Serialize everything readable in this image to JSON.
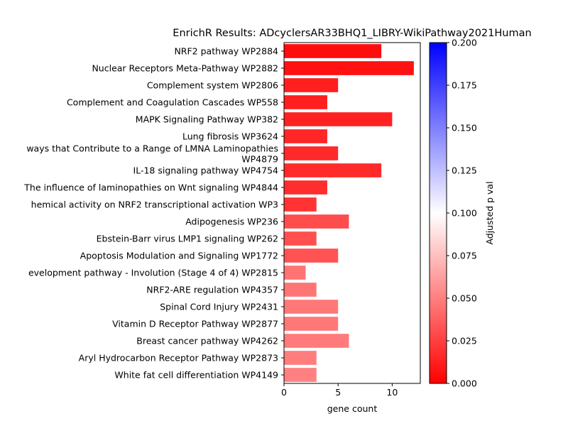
{
  "chart_data": {
    "type": "bar",
    "orientation": "horizontal",
    "title": "EnrichR Results: ADcyclersAR33BHQ1_LIBRY-WikiPathway2021Human",
    "xlabel": "gene count",
    "ylabel": "",
    "xlim": [
      0,
      12.6
    ],
    "xticks": [
      0,
      5,
      10
    ],
    "categories": [
      [
        "NRF2 pathway WP2884"
      ],
      [
        "Nuclear Receptors Meta-Pathway WP2882"
      ],
      [
        "Complement system WP2806"
      ],
      [
        "Complement and Coagulation Cascades WP558"
      ],
      [
        "MAPK Signaling Pathway WP382"
      ],
      [
        "Lung fibrosis WP3624"
      ],
      [
        "ways that Contribute to a Range of LMNA Laminopathies",
        "WP4879"
      ],
      [
        "IL-18 signaling pathway WP4754"
      ],
      [
        "The influence of laminopathies on Wnt signaling WP4844"
      ],
      [
        "hemical activity on NRF2 transcriptional activation WP3"
      ],
      [
        "Adipogenesis WP236"
      ],
      [
        "Ebstein-Barr virus LMP1 signaling WP262"
      ],
      [
        "Apoptosis Modulation and Signaling WP1772"
      ],
      [
        "evelopment pathway - Involution (Stage 4 of 4) WP2815"
      ],
      [
        "NRF2-ARE regulation WP4357"
      ],
      [
        "Spinal Cord Injury WP2431"
      ],
      [
        "Vitamin D Receptor Pathway WP2877"
      ],
      [
        "Breast cancer pathway WP4262"
      ],
      [
        "Aryl Hydrocarbon Receptor Pathway WP2873"
      ],
      [
        "White fat cell differentiation WP4149"
      ]
    ],
    "values": [
      9,
      12,
      5,
      4,
      10,
      4,
      5,
      9,
      4,
      3,
      6,
      3,
      5,
      2,
      3,
      5,
      5,
      6,
      3,
      3
    ],
    "color_values": [
      0.005,
      0.007,
      0.012,
      0.012,
      0.013,
      0.015,
      0.016,
      0.017,
      0.018,
      0.02,
      0.03,
      0.031,
      0.032,
      0.045,
      0.046,
      0.047,
      0.047,
      0.048,
      0.049,
      0.05
    ],
    "colorbar": {
      "label": "Adjusted p val",
      "range": [
        0,
        0.2
      ],
      "ticks": [
        "0.000",
        "0.025",
        "0.050",
        "0.075",
        "0.100",
        "0.125",
        "0.150",
        "0.175",
        "0.200"
      ],
      "colors": [
        "#ff0000",
        "#ffffff",
        "#0000ff"
      ]
    },
    "grid": false,
    "legend": "colorbar-right"
  }
}
